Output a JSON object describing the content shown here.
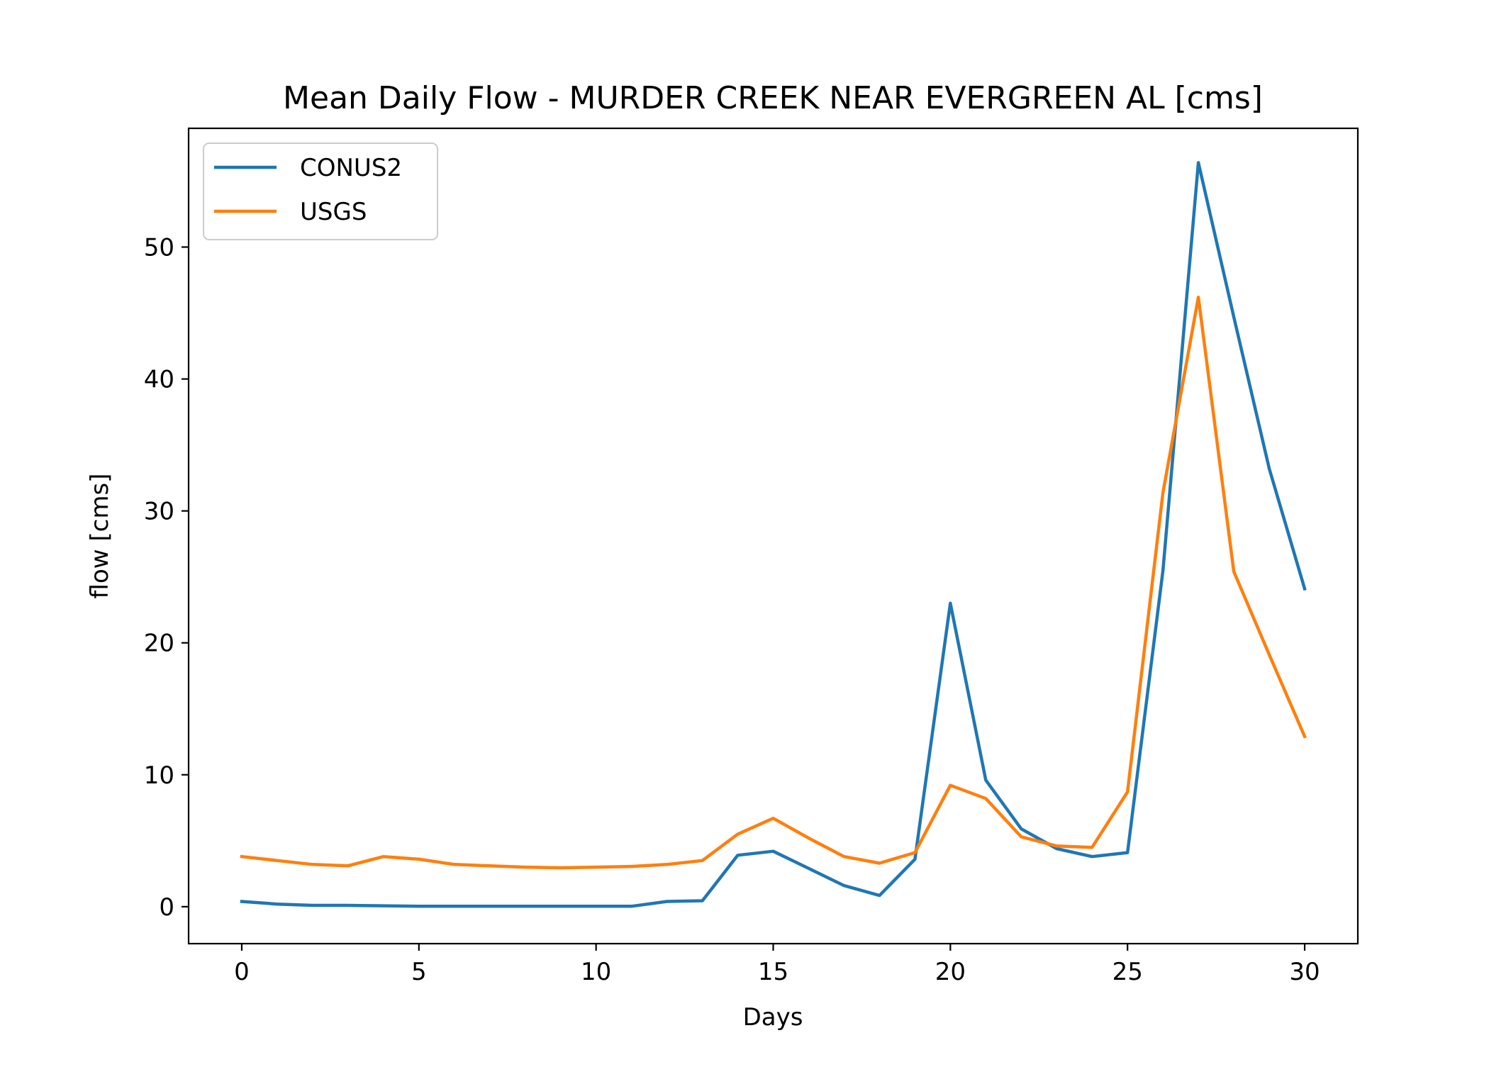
{
  "chart_data": {
    "type": "line",
    "title": "Mean Daily Flow - MURDER CREEK NEAR EVERGREEN AL [cms]",
    "xlabel": "Days",
    "ylabel": "flow [cms]",
    "xlim": [
      -1.5,
      31.5
    ],
    "ylim": [
      -2.8,
      59
    ],
    "xticks": [
      0,
      5,
      10,
      15,
      20,
      25,
      30
    ],
    "yticks": [
      0,
      10,
      20,
      30,
      40,
      50
    ],
    "grid": false,
    "legend": "upper left",
    "x": [
      0,
      1,
      2,
      3,
      4,
      5,
      6,
      7,
      8,
      9,
      10,
      11,
      12,
      13,
      14,
      15,
      16,
      17,
      18,
      19,
      20,
      21,
      22,
      23,
      24,
      25,
      26,
      27,
      28,
      29,
      30
    ],
    "series": [
      {
        "name": "CONUS2",
        "color": "#1f77b4",
        "values": [
          0.4,
          0.2,
          0.1,
          0.1,
          0.07,
          0.03,
          0.03,
          0.03,
          0.03,
          0.03,
          0.03,
          0.03,
          0.4,
          0.45,
          3.9,
          4.2,
          2.9,
          1.6,
          0.85,
          3.6,
          23.0,
          9.6,
          5.9,
          4.4,
          3.8,
          4.1,
          25.5,
          56.4,
          44.7,
          33.2,
          24.1
        ]
      },
      {
        "name": "USGS",
        "color": "#ff7f0e",
        "values": [
          3.8,
          3.5,
          3.2,
          3.1,
          3.8,
          3.6,
          3.2,
          3.1,
          3.0,
          2.95,
          3.0,
          3.05,
          3.2,
          3.5,
          5.5,
          6.7,
          5.2,
          3.8,
          3.3,
          4.1,
          9.2,
          8.2,
          5.3,
          4.6,
          4.5,
          8.7,
          31.4,
          46.2,
          25.4,
          19.1,
          12.9
        ]
      }
    ]
  }
}
